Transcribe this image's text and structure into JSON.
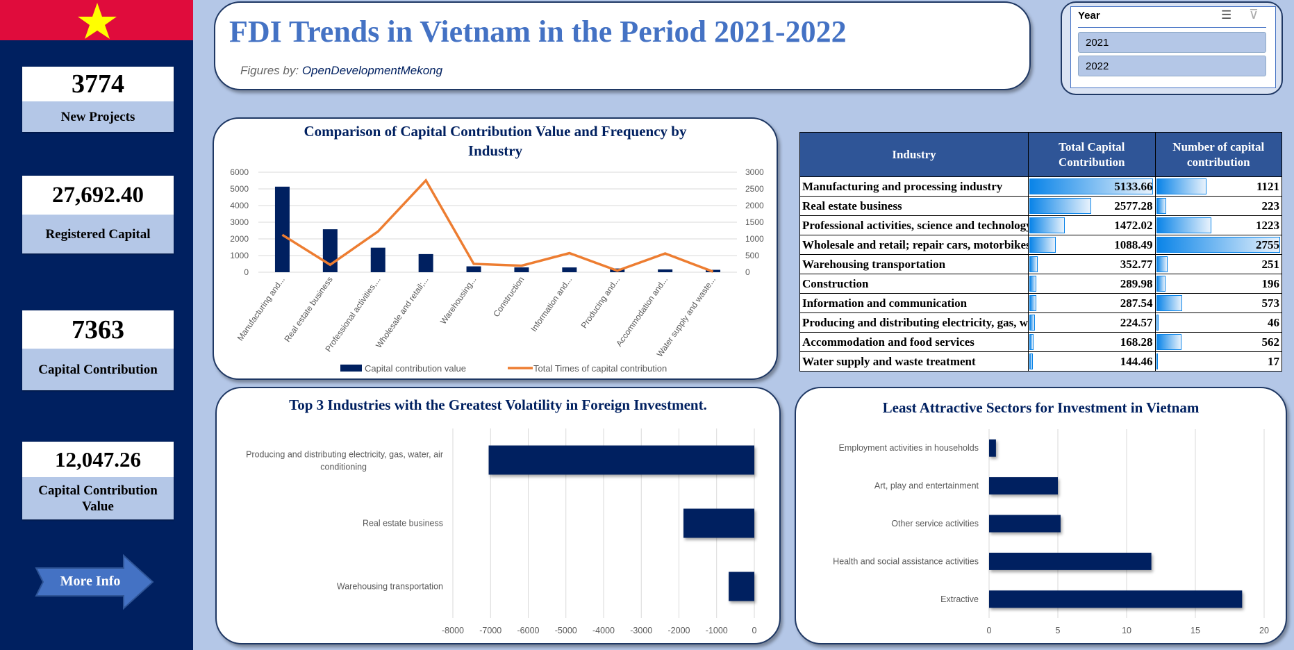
{
  "colors": {
    "sidebar": "#002060",
    "flag_red": "#e00c3c",
    "flag_star": "#ffff00",
    "background": "#b4c7e7",
    "bar": "#002060",
    "line": "#ed7d31",
    "title": "#4472c4"
  },
  "header": {
    "title": "FDI Trends in Vietnam in the Period 2021-2022",
    "credit_label": "Figures by:",
    "credit_source": "OpenDevelopmentMekong"
  },
  "slicer": {
    "title": "Year",
    "icons": [
      "multi-select-icon",
      "clear-filter-icon"
    ],
    "options": [
      "2021",
      "2022"
    ]
  },
  "kpis": [
    {
      "value": "3774",
      "label": "New Projects"
    },
    {
      "value": "27,692.40",
      "label": "Registered Capital"
    },
    {
      "value": "7363",
      "label": "Capital Contribution"
    },
    {
      "value": "12,047.26",
      "label": "Capital Contribution Value"
    }
  ],
  "more_info": "More Info",
  "table": {
    "headers": [
      "Industry",
      "Total Capital Contribution",
      "Number of capital contribution"
    ],
    "rows": [
      [
        "Manufacturing and processing industry",
        "5133.66",
        "1121"
      ],
      [
        "Real estate business",
        "2577.28",
        "223"
      ],
      [
        "Professional activities, science and technology",
        "1472.02",
        "1223"
      ],
      [
        "Wholesale and retail; repair cars, motorbikes",
        "1088.49",
        "2755"
      ],
      [
        "Warehousing transportation",
        "352.77",
        "251"
      ],
      [
        "Construction",
        "289.98",
        "196"
      ],
      [
        "Information and communication",
        "287.54",
        "573"
      ],
      [
        "Producing and distributing electricity, gas, water, air conditioning",
        "224.57",
        "46"
      ],
      [
        "Accommodation and food services",
        "168.28",
        "562"
      ],
      [
        "Water supply and waste treatment",
        "144.46",
        "17"
      ]
    ]
  },
  "chart_data": [
    {
      "type": "bar+line",
      "title": "Comparison of Capital Contribution Value and Frequency by Industry",
      "categories": [
        "Manufacturing and...",
        "Real estate business",
        "Professional activities,...",
        "Wholesale and retail;...",
        "Warehousing...",
        "Construction",
        "Information and...",
        "Producing and...",
        "Accommodation and...",
        "Water supply and waste..."
      ],
      "series": [
        {
          "name": "Capital contribution value",
          "type": "bar",
          "axis": "left",
          "values": [
            5133.66,
            2577.28,
            1472.02,
            1088.49,
            352.77,
            289.98,
            287.54,
            224.57,
            168.28,
            144.46
          ]
        },
        {
          "name": "Total Times of capital contribution",
          "type": "line",
          "axis": "right",
          "values": [
            1121,
            223,
            1223,
            2755,
            251,
            196,
            573,
            46,
            562,
            17
          ]
        }
      ],
      "ylim": [
        0,
        6000
      ],
      "yticks": [
        "0",
        "1000",
        "2000",
        "3000",
        "4000",
        "5000",
        "6000"
      ],
      "y2lim": [
        0,
        3000
      ],
      "y2ticks": [
        "0",
        "500",
        "1000",
        "1500",
        "2000",
        "2500",
        "3000"
      ],
      "grid": true,
      "legend": "bottom"
    },
    {
      "type": "bar",
      "orientation": "horizontal",
      "title": "Top 3 Industries with the Greatest Volatility in Foreign Investment.",
      "categories": [
        "Producing and distributing electricity, gas, water, air conditioning",
        "Real estate business",
        "Warehousing transportation"
      ],
      "values": [
        -7050,
        -1880,
        -680
      ],
      "xlim": [
        -8000,
        0
      ],
      "xticks": [
        "-8000",
        "-7000",
        "-6000",
        "-5000",
        "-4000",
        "-3000",
        "-2000",
        "-1000",
        "0"
      ],
      "grid": true
    },
    {
      "type": "bar",
      "orientation": "horizontal",
      "title": "Least Attractive Sectors for Investment in Vietnam",
      "categories": [
        "Employment activities in households",
        "Art, play and entertainment",
        "Other service activities",
        "Health and social assistance activities",
        "Extractive"
      ],
      "values": [
        0.5,
        5,
        5.2,
        11.8,
        18.4
      ],
      "xlim": [
        0,
        20
      ],
      "xticks": [
        "0",
        "5",
        "10",
        "15",
        "20"
      ],
      "grid": true
    }
  ]
}
